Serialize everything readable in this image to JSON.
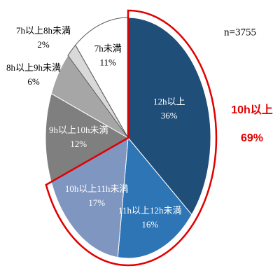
{
  "chart_data": {
    "type": "pie",
    "categories": [
      "12h以上",
      "11h以上12h未満",
      "10h以上11h未満",
      "9h以上10h未満",
      "8h以上9h未満",
      "7h以上8h未満",
      "7h未満"
    ],
    "values": [
      36,
      16,
      17,
      12,
      6,
      2,
      11
    ],
    "value_labels": [
      "36%",
      "16%",
      "17%",
      "12%",
      "6%",
      "2%",
      "11%"
    ],
    "colors": [
      "#1f4e79",
      "#2e75b6",
      "#7f96c0",
      "#7f7f7f",
      "#a6a6a6",
      "#d9d9d9",
      "#ffffff"
    ],
    "annotations": [
      "n=3755",
      "10h以上",
      "69%"
    ],
    "highlight_color": "#e00000"
  }
}
